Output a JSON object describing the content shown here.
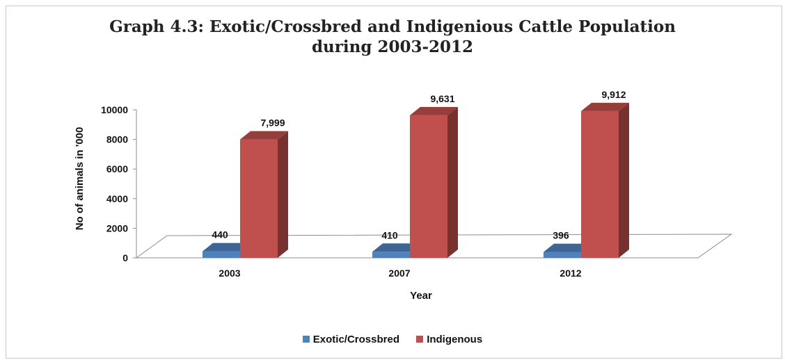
{
  "chart_data": {
    "type": "bar",
    "title": [
      "Graph 4.3: Exotic/Crossbred  and Indigenious Cattle Population",
      "during  2003-2012"
    ],
    "xlabel": "Year",
    "ylabel": "No of animals in '000",
    "categories": [
      "2003",
      "2007",
      "2012"
    ],
    "yticks": [
      "0",
      "2000",
      "4000",
      "6000",
      "8000",
      "10000"
    ],
    "ylim": [
      0,
      10000
    ],
    "grid": false,
    "legend_position": "bottom",
    "series": [
      {
        "name": "Exotic/Crossbred",
        "values": [
          440,
          410,
          396
        ],
        "labels": [
          "440",
          "410",
          "396"
        ],
        "color": "#4f81bd"
      },
      {
        "name": "Indigenous",
        "values": [
          7999,
          9631,
          9912
        ],
        "labels": [
          "7,999",
          "9,631",
          "9,912"
        ],
        "color": "#c0504d"
      }
    ]
  }
}
